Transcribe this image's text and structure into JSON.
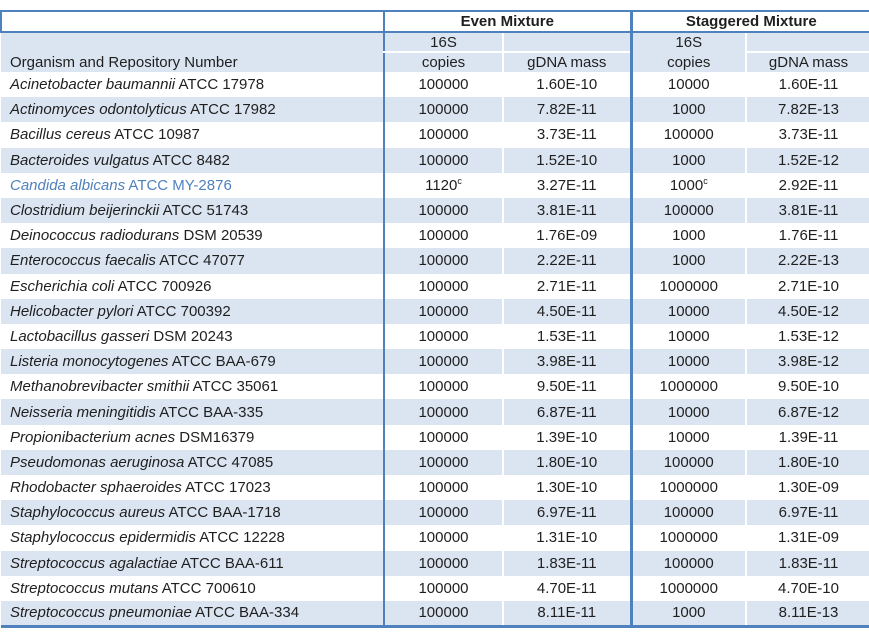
{
  "colors": {
    "accent_border": "#4f81bd",
    "row_shade": "#dbe5f1",
    "highlight_text": "#4f81bd",
    "text_color": "#1f1f1f"
  },
  "header": {
    "even_mixture": "Even Mixture",
    "staggered_mixture": "Staggered Mixture",
    "sixteen_s": "16S",
    "copies": "copies",
    "gdna_mass": "gDNA mass",
    "organism_column": "Organism and Repository Number"
  },
  "table": {
    "rows": [
      {
        "organism_sci": "Acinetobacter baumannii",
        "organism_id": "ATCC 17978",
        "highlighted": false,
        "even_copies": "100000",
        "even_copies_sup": "",
        "even_gdna": "1.60E-10",
        "stag_copies": "10000",
        "stag_copies_sup": "",
        "stag_gdna": "1.60E-11"
      },
      {
        "organism_sci": "Actinomyces odontolyticus",
        "organism_id": "ATCC 17982",
        "highlighted": false,
        "even_copies": "100000",
        "even_copies_sup": "",
        "even_gdna": "7.82E-11",
        "stag_copies": "1000",
        "stag_copies_sup": "",
        "stag_gdna": "7.82E-13"
      },
      {
        "organism_sci": "Bacillus cereus",
        "organism_id": "ATCC 10987",
        "highlighted": false,
        "even_copies": "100000",
        "even_copies_sup": "",
        "even_gdna": "3.73E-11",
        "stag_copies": "100000",
        "stag_copies_sup": "",
        "stag_gdna": "3.73E-11"
      },
      {
        "organism_sci": "Bacteroides vulgatus",
        "organism_id": "ATCC 8482",
        "highlighted": false,
        "even_copies": "100000",
        "even_copies_sup": "",
        "even_gdna": "1.52E-10",
        "stag_copies": "1000",
        "stag_copies_sup": "",
        "stag_gdna": "1.52E-12"
      },
      {
        "organism_sci": "Candida albicans",
        "organism_id": "ATCC MY-2876",
        "highlighted": true,
        "even_copies": "1120",
        "even_copies_sup": "c",
        "even_gdna": "3.27E-11",
        "stag_copies": "1000",
        "stag_copies_sup": "c",
        "stag_gdna": "2.92E-11"
      },
      {
        "organism_sci": "Clostridium beijerinckii",
        "organism_id": "ATCC 51743",
        "highlighted": false,
        "even_copies": "100000",
        "even_copies_sup": "",
        "even_gdna": "3.81E-11",
        "stag_copies": "100000",
        "stag_copies_sup": "",
        "stag_gdna": "3.81E-11"
      },
      {
        "organism_sci": "Deinococcus radiodurans",
        "organism_id": "DSM 20539",
        "highlighted": false,
        "even_copies": "100000",
        "even_copies_sup": "",
        "even_gdna": "1.76E-09",
        "stag_copies": "1000",
        "stag_copies_sup": "",
        "stag_gdna": "1.76E-11"
      },
      {
        "organism_sci": "Enterococcus faecalis",
        "organism_id": "ATCC 47077",
        "highlighted": false,
        "even_copies": "100000",
        "even_copies_sup": "",
        "even_gdna": "2.22E-11",
        "stag_copies": "1000",
        "stag_copies_sup": "",
        "stag_gdna": "2.22E-13"
      },
      {
        "organism_sci": "Escherichia coli",
        "organism_id": "ATCC 700926",
        "highlighted": false,
        "even_copies": "100000",
        "even_copies_sup": "",
        "even_gdna": "2.71E-11",
        "stag_copies": "1000000",
        "stag_copies_sup": "",
        "stag_gdna": "2.71E-10"
      },
      {
        "organism_sci": "Helicobacter pylori",
        "organism_id": "ATCC 700392",
        "highlighted": false,
        "even_copies": "100000",
        "even_copies_sup": "",
        "even_gdna": "4.50E-11",
        "stag_copies": "10000",
        "stag_copies_sup": "",
        "stag_gdna": "4.50E-12"
      },
      {
        "organism_sci": "Lactobacillus gasseri",
        "organism_id": "DSM 20243",
        "highlighted": false,
        "even_copies": "100000",
        "even_copies_sup": "",
        "even_gdna": "1.53E-11",
        "stag_copies": "10000",
        "stag_copies_sup": "",
        "stag_gdna": "1.53E-12"
      },
      {
        "organism_sci": "Listeria monocytogenes",
        "organism_id": "ATCC BAA-679",
        "highlighted": false,
        "even_copies": "100000",
        "even_copies_sup": "",
        "even_gdna": "3.98E-11",
        "stag_copies": "10000",
        "stag_copies_sup": "",
        "stag_gdna": "3.98E-12"
      },
      {
        "organism_sci": "Methanobrevibacter smithii",
        "organism_id": "ATCC 35061",
        "highlighted": false,
        "even_copies": "100000",
        "even_copies_sup": "",
        "even_gdna": "9.50E-11",
        "stag_copies": "1000000",
        "stag_copies_sup": "",
        "stag_gdna": "9.50E-10"
      },
      {
        "organism_sci": "Neisseria meningitidis",
        "organism_id": "ATCC BAA-335",
        "highlighted": false,
        "even_copies": "100000",
        "even_copies_sup": "",
        "even_gdna": "6.87E-11",
        "stag_copies": "10000",
        "stag_copies_sup": "",
        "stag_gdna": "6.87E-12"
      },
      {
        "organism_sci": "Propionibacterium acnes",
        "organism_id": "DSM16379",
        "highlighted": false,
        "even_copies": "100000",
        "even_copies_sup": "",
        "even_gdna": "1.39E-10",
        "stag_copies": "10000",
        "stag_copies_sup": "",
        "stag_gdna": "1.39E-11"
      },
      {
        "organism_sci": "Pseudomonas aeruginosa",
        "organism_id": "ATCC 47085",
        "highlighted": false,
        "even_copies": "100000",
        "even_copies_sup": "",
        "even_gdna": "1.80E-10",
        "stag_copies": "100000",
        "stag_copies_sup": "",
        "stag_gdna": "1.80E-10"
      },
      {
        "organism_sci": "Rhodobacter sphaeroides",
        "organism_id": "ATCC 17023",
        "highlighted": false,
        "even_copies": "100000",
        "even_copies_sup": "",
        "even_gdna": "1.30E-10",
        "stag_copies": "1000000",
        "stag_copies_sup": "",
        "stag_gdna": "1.30E-09"
      },
      {
        "organism_sci": "Staphylococcus aureus",
        "organism_id": "ATCC BAA-1718",
        "highlighted": false,
        "even_copies": "100000",
        "even_copies_sup": "",
        "even_gdna": "6.97E-11",
        "stag_copies": "100000",
        "stag_copies_sup": "",
        "stag_gdna": "6.97E-11"
      },
      {
        "organism_sci": "Staphylococcus epidermidis",
        "organism_id": "ATCC 12228",
        "highlighted": false,
        "even_copies": "100000",
        "even_copies_sup": "",
        "even_gdna": "1.31E-10",
        "stag_copies": "1000000",
        "stag_copies_sup": "",
        "stag_gdna": "1.31E-09"
      },
      {
        "organism_sci": "Streptococcus agalactiae",
        "organism_id": "ATCC BAA-611",
        "highlighted": false,
        "even_copies": "100000",
        "even_copies_sup": "",
        "even_gdna": "1.83E-11",
        "stag_copies": "100000",
        "stag_copies_sup": "",
        "stag_gdna": "1.83E-11"
      },
      {
        "organism_sci": "Streptococcus mutans",
        "organism_id": "ATCC 700610",
        "highlighted": false,
        "even_copies": "100000",
        "even_copies_sup": "",
        "even_gdna": "4.70E-11",
        "stag_copies": "1000000",
        "stag_copies_sup": "",
        "stag_gdna": "4.70E-10"
      },
      {
        "organism_sci": "Streptococcus pneumoniae",
        "organism_id": "ATCC BAA-334",
        "highlighted": false,
        "even_copies": "100000",
        "even_copies_sup": "",
        "even_gdna": "8.11E-11",
        "stag_copies": "1000",
        "stag_copies_sup": "",
        "stag_gdna": "8.11E-13"
      }
    ]
  }
}
